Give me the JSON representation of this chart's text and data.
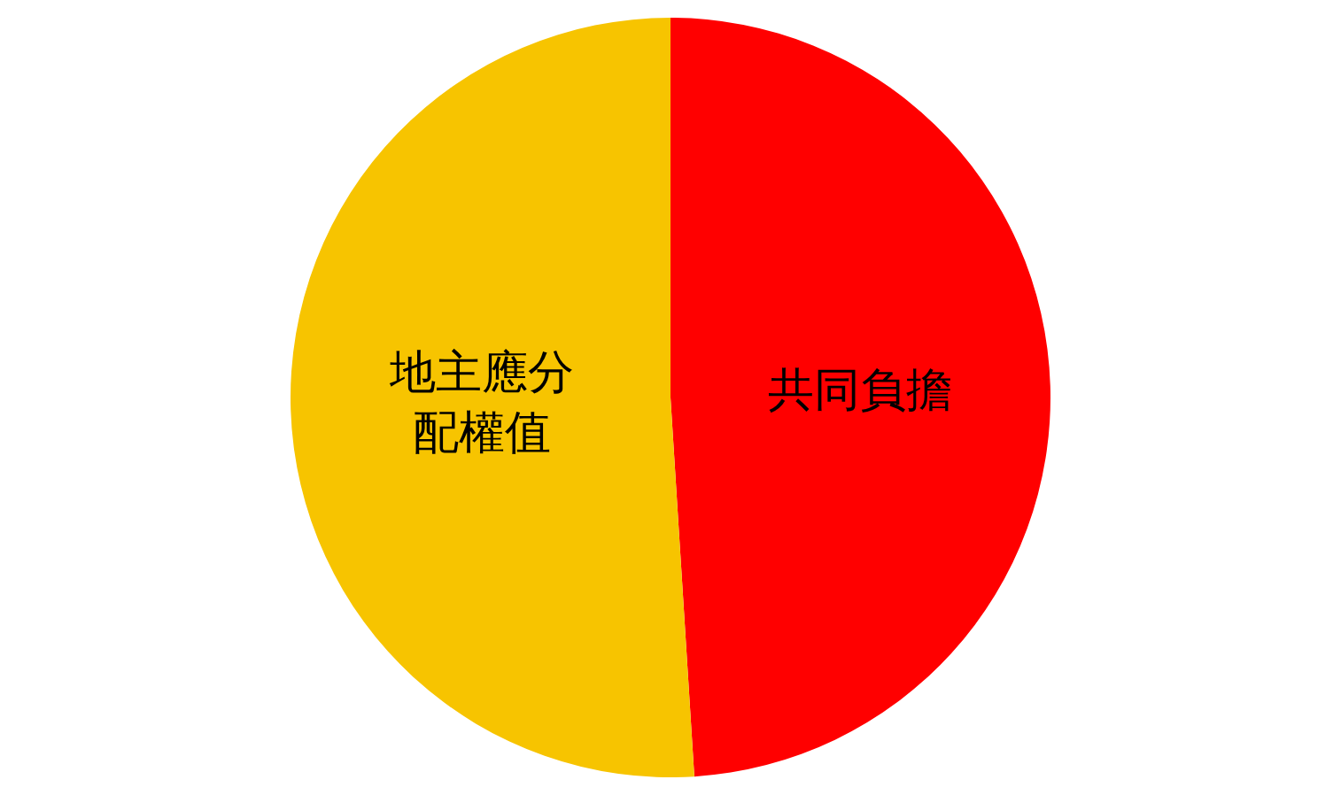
{
  "chart_data": {
    "type": "pie",
    "categories": [
      "共同負擔",
      "地主應分配權值"
    ],
    "values": [
      49,
      51
    ],
    "colors": [
      "#ff0000",
      "#f7c400"
    ],
    "legend": false
  }
}
